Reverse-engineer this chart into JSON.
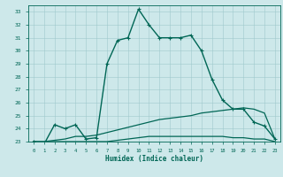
{
  "xlabel": "Humidex (Indice chaleur)",
  "ylabel": "",
  "xlim": [
    -0.5,
    23.5
  ],
  "ylim": [
    23,
    33.5
  ],
  "yticks": [
    23,
    24,
    25,
    26,
    27,
    28,
    29,
    30,
    31,
    32,
    33
  ],
  "xticks": [
    0,
    1,
    2,
    3,
    4,
    5,
    6,
    7,
    8,
    9,
    10,
    11,
    12,
    13,
    14,
    15,
    16,
    17,
    18,
    19,
    20,
    21,
    22,
    23
  ],
  "bg_color": "#cde8ea",
  "grid_color": "#9fc8cc",
  "line_color": "#006655",
  "series": [
    {
      "x": [
        0,
        1,
        2,
        3,
        4,
        5,
        6,
        7,
        8,
        9,
        10,
        11,
        12,
        13,
        14,
        15,
        16,
        17,
        18,
        19,
        20,
        21,
        22,
        23
      ],
      "y": [
        23.0,
        22.8,
        24.3,
        24.0,
        24.3,
        23.2,
        23.3,
        29.0,
        30.8,
        31.0,
        33.2,
        32.0,
        31.0,
        31.0,
        31.0,
        31.2,
        30.0,
        27.8,
        26.2,
        25.5,
        25.5,
        24.5,
        24.2,
        23.2
      ],
      "marker": "+",
      "markersize": 3.5,
      "linewidth": 1.0
    },
    {
      "x": [
        0,
        1,
        2,
        3,
        4,
        5,
        6,
        7,
        8,
        9,
        10,
        11,
        12,
        13,
        14,
        15,
        16,
        17,
        18,
        19,
        20,
        21,
        22,
        23
      ],
      "y": [
        23.0,
        23.0,
        23.1,
        23.2,
        23.4,
        23.4,
        23.5,
        23.7,
        23.9,
        24.1,
        24.3,
        24.5,
        24.7,
        24.8,
        24.9,
        25.0,
        25.2,
        25.3,
        25.4,
        25.5,
        25.6,
        25.5,
        25.2,
        23.2
      ],
      "marker": null,
      "markersize": 0,
      "linewidth": 0.9
    },
    {
      "x": [
        0,
        1,
        2,
        3,
        4,
        5,
        6,
        7,
        8,
        9,
        10,
        11,
        12,
        13,
        14,
        15,
        16,
        17,
        18,
        19,
        20,
        21,
        22,
        23
      ],
      "y": [
        23.0,
        23.0,
        23.0,
        23.0,
        23.0,
        23.0,
        23.0,
        23.0,
        23.1,
        23.2,
        23.3,
        23.4,
        23.4,
        23.4,
        23.4,
        23.4,
        23.4,
        23.4,
        23.4,
        23.3,
        23.3,
        23.2,
        23.2,
        23.0
      ],
      "marker": null,
      "markersize": 0,
      "linewidth": 0.9
    }
  ]
}
